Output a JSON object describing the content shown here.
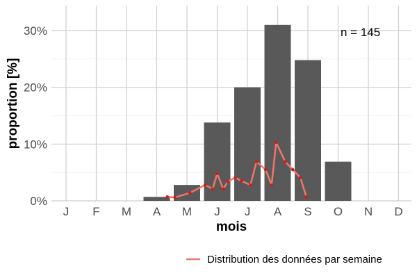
{
  "chart_data": {
    "type": "bar",
    "xlabel": "mois",
    "ylabel": "proportion [%]",
    "categories": [
      "J",
      "F",
      "M",
      "A",
      "M",
      "J",
      "J",
      "A",
      "S",
      "O",
      "N",
      "D"
    ],
    "values": [
      0,
      0,
      0,
      0.7,
      2.8,
      13.8,
      20.0,
      31.0,
      24.8,
      6.9,
      0,
      0
    ],
    "ylim": [
      0,
      34
    ],
    "yticks": [
      0,
      10,
      20,
      30
    ],
    "ytick_labels": [
      "0%",
      "10%",
      "20%",
      "30%"
    ],
    "annotation": "n = 145",
    "grid": true,
    "bar_color": "#595959",
    "line_series": {
      "name": "Distribution des données par semaine",
      "color": "#f0766b",
      "point_color": "#cc1f1a",
      "x_months": [
        3.35,
        3.6,
        4.1,
        4.6,
        4.85,
        5.0,
        5.2,
        5.35,
        5.6,
        5.8,
        6.1,
        6.3,
        6.6,
        6.8,
        6.95,
        7.25,
        7.5,
        7.75,
        7.95,
        8.15,
        8.45
      ],
      "values": [
        0.7,
        0.6,
        1.4,
        2.8,
        2.1,
        4.8,
        2.1,
        3.4,
        4.1,
        3.5,
        2.8,
        6.9,
        5.5,
        2.8,
        10.3,
        6.9,
        5.5,
        4.1,
        0.7,
        null,
        null
      ]
    },
    "legend_position": "bottom-right"
  }
}
